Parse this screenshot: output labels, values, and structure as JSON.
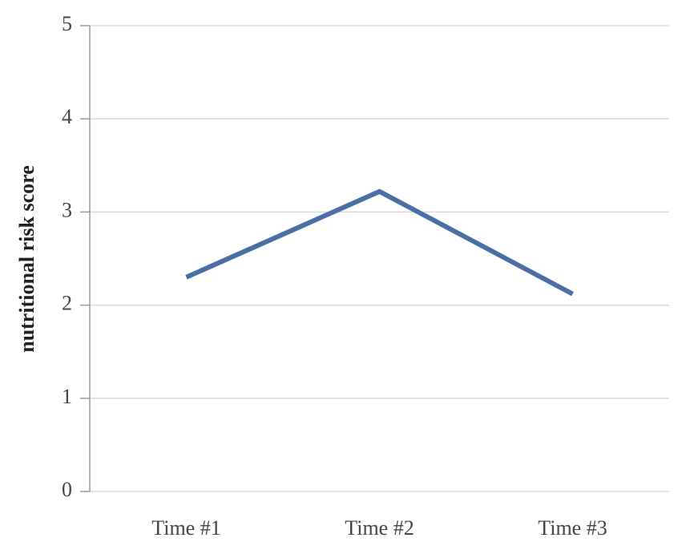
{
  "chart_data": {
    "type": "line",
    "ylabel": "nutritional risk score",
    "categories": [
      "Time #1",
      "Time #2",
      "Time #3"
    ],
    "series": [
      {
        "name": "nutritional risk score",
        "color": "#4a6fa5",
        "values": [
          2.3,
          3.22,
          2.12
        ]
      }
    ],
    "ylim": [
      0,
      5
    ],
    "yticks": [
      0,
      1,
      2,
      3,
      4,
      5
    ],
    "grid": true
  }
}
